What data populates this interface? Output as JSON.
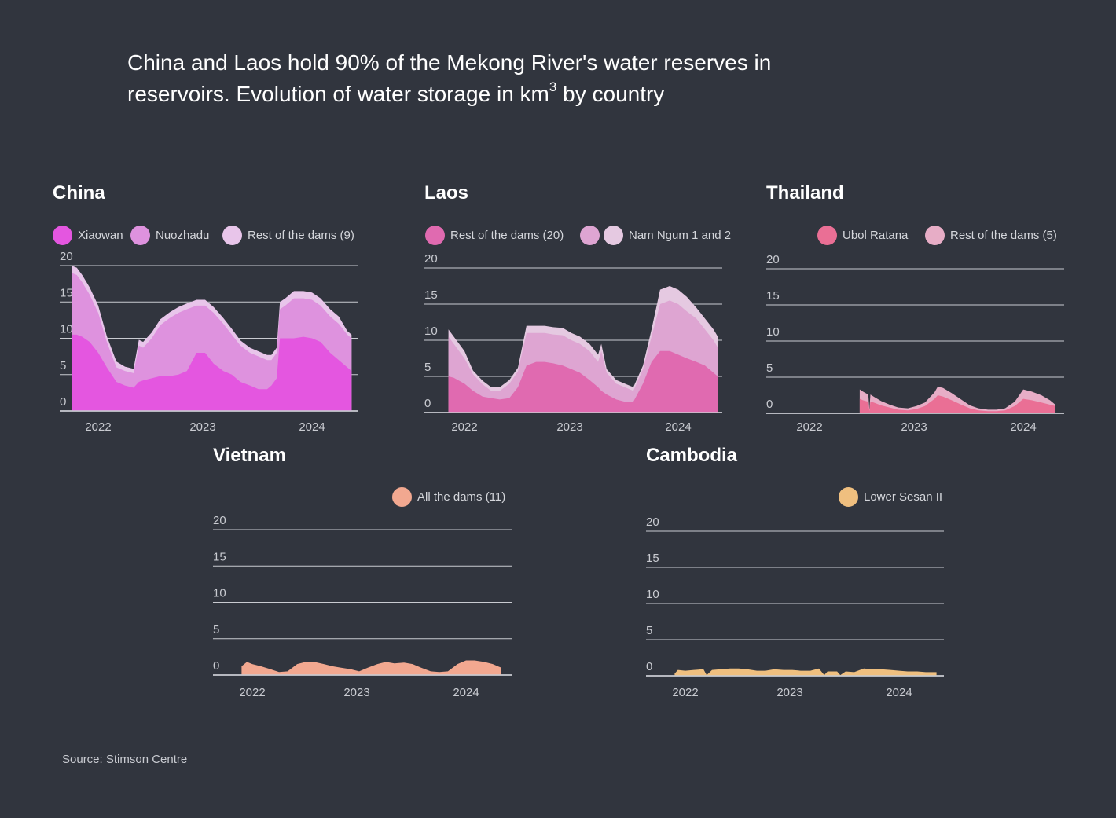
{
  "title_line1": "China and Laos hold 90% of the Mekong River's water reserves in",
  "title_line2_a": "reservoirs. Evolution of water storage in km",
  "title_line2_sup": "3",
  "title_line2_b": " by country",
  "source": "Source: Stimson Centre",
  "chart_data": [
    {
      "type": "area",
      "title": "China",
      "stacked": true,
      "x_ticks": [
        "2022",
        "2023",
        "2024"
      ],
      "y_ticks": [
        "0",
        "5",
        "10",
        "15",
        "20"
      ],
      "ylim": [
        0,
        20
      ],
      "x": [
        2021.75,
        2021.8,
        2021.85,
        2021.92,
        2022.0,
        2022.08,
        2022.17,
        2022.25,
        2022.33,
        2022.38,
        2022.42,
        2022.5,
        2022.58,
        2022.67,
        2022.75,
        2022.83,
        2022.92,
        2023.0,
        2023.08,
        2023.17,
        2023.25,
        2023.33,
        2023.42,
        2023.5,
        2023.58,
        2023.62,
        2023.67,
        2023.7,
        2023.75,
        2023.83,
        2023.92,
        2024.0,
        2024.08,
        2024.17,
        2024.25,
        2024.33,
        2024.37
      ],
      "series": [
        {
          "name": "Xiaowan",
          "color": "#e456e0",
          "values": [
            10.5,
            10.5,
            10.2,
            9.5,
            8.0,
            6.0,
            4.0,
            3.5,
            3.2,
            4.0,
            4.2,
            4.5,
            4.8,
            4.8,
            5.0,
            5.5,
            8.0,
            8.0,
            6.5,
            5.5,
            5.0,
            4.0,
            3.5,
            3.0,
            3.0,
            3.5,
            4.5,
            10.0,
            10.0,
            10.0,
            10.2,
            10.0,
            9.5,
            8.0,
            7.0,
            6.0,
            5.5
          ]
        },
        {
          "name": "Nuozhadu",
          "color": "#de92de",
          "values": [
            8.5,
            8.2,
            7.5,
            6.5,
            5.5,
            3.5,
            2.0,
            2.0,
            2.0,
            5.0,
            4.5,
            5.5,
            7.0,
            8.0,
            8.5,
            8.5,
            6.5,
            6.5,
            7.0,
            6.5,
            5.5,
            5.0,
            4.5,
            4.5,
            4.0,
            3.5,
            3.5,
            4.0,
            4.5,
            5.5,
            5.3,
            5.3,
            5.0,
            5.0,
            5.0,
            4.5,
            4.5
          ]
        },
        {
          "name": "Rest of the dams (9)",
          "color": "#e8c5ea",
          "values": [
            1.0,
            1.0,
            1.0,
            1.0,
            1.0,
            0.8,
            0.8,
            0.6,
            0.6,
            0.8,
            0.8,
            0.8,
            0.8,
            0.8,
            0.8,
            0.8,
            0.8,
            0.8,
            0.8,
            0.8,
            0.8,
            0.7,
            0.7,
            0.7,
            0.7,
            0.7,
            0.7,
            1.0,
            1.0,
            1.0,
            1.0,
            1.0,
            1.0,
            1.0,
            1.0,
            0.5,
            0.5
          ]
        }
      ]
    },
    {
      "type": "area",
      "title": "Laos",
      "stacked": true,
      "x_ticks": [
        "2022",
        "2023",
        "2024"
      ],
      "y_ticks": [
        "0",
        "5",
        "10",
        "15",
        "20"
      ],
      "ylim": [
        0,
        20
      ],
      "x": [
        2021.85,
        2021.9,
        2022.0,
        2022.08,
        2022.17,
        2022.25,
        2022.33,
        2022.42,
        2022.5,
        2022.58,
        2022.67,
        2022.75,
        2022.83,
        2022.92,
        2023.0,
        2023.08,
        2023.17,
        2023.25,
        2023.28,
        2023.33,
        2023.42,
        2023.5,
        2023.58,
        2023.67,
        2023.75,
        2023.83,
        2023.92,
        2024.0,
        2024.08,
        2024.17,
        2024.25,
        2024.33,
        2024.37
      ],
      "series": [
        {
          "name": "Rest of the dams (20)",
          "color": "#e06ab0",
          "values": [
            5.0,
            4.8,
            4.0,
            3.0,
            2.2,
            2.0,
            1.8,
            2.0,
            3.5,
            6.5,
            7.0,
            7.0,
            6.8,
            6.5,
            6.0,
            5.5,
            4.5,
            3.5,
            3.0,
            2.5,
            1.8,
            1.5,
            1.5,
            4.0,
            7.0,
            8.5,
            8.5,
            8.0,
            7.5,
            7.0,
            6.5,
            5.5,
            5.0
          ]
        },
        {
          "name": "Nam Ngum 1 and 2",
          "color": "#dea5d2",
          "values": [
            5.5,
            4.7,
            3.5,
            2.3,
            1.7,
            1.0,
            1.2,
            2.0,
            2.2,
            4.5,
            4.0,
            4.0,
            4.0,
            4.2,
            4.0,
            4.0,
            4.0,
            3.5,
            5.5,
            3.0,
            2.2,
            2.0,
            1.5,
            2.0,
            3.5,
            6.5,
            7.0,
            7.0,
            6.5,
            6.0,
            5.0,
            4.5,
            4.0
          ]
        },
        {
          "name": "",
          "color": "#e5c9e1",
          "values": [
            1.0,
            1.0,
            1.0,
            0.5,
            0.5,
            0.5,
            0.5,
            0.5,
            0.5,
            1.0,
            1.0,
            1.0,
            1.0,
            1.0,
            1.0,
            1.0,
            1.0,
            1.0,
            1.0,
            0.5,
            0.5,
            0.5,
            0.5,
            0.5,
            1.0,
            2.0,
            2.0,
            2.0,
            2.0,
            1.5,
            1.5,
            1.5,
            1.5
          ]
        }
      ]
    },
    {
      "type": "area",
      "title": "Thailand",
      "stacked": true,
      "x_ticks": [
        "2022",
        "2023",
        "2024"
      ],
      "y_ticks": [
        "0",
        "5",
        "10",
        "15",
        "20"
      ],
      "ylim": [
        0,
        20
      ],
      "x": [
        2022.47,
        2022.5,
        2022.55,
        2022.56,
        2022.57,
        2022.6,
        2022.67,
        2022.75,
        2022.83,
        2022.92,
        2023.0,
        2023.08,
        2023.17,
        2023.2,
        2023.25,
        2023.33,
        2023.42,
        2023.5,
        2023.58,
        2023.67,
        2023.75,
        2023.83,
        2023.92,
        2024.0,
        2024.08,
        2024.17,
        2024.25,
        2024.3
      ],
      "series": [
        {
          "name": "Ubol Ratana",
          "color": "#ea6f95",
          "values": [
            2.0,
            1.8,
            1.6,
            0.3,
            1.6,
            1.5,
            1.1,
            0.8,
            0.5,
            0.4,
            0.6,
            1.0,
            2.0,
            2.5,
            2.3,
            1.8,
            1.2,
            0.7,
            0.4,
            0.3,
            0.3,
            0.4,
            1.0,
            2.0,
            1.8,
            1.5,
            1.2,
            1.0
          ]
        },
        {
          "name": "Rest of the dams (5)",
          "color": "#e7adc6",
          "values": [
            1.3,
            1.2,
            1.0,
            0.2,
            1.0,
            0.8,
            0.6,
            0.4,
            0.3,
            0.3,
            0.4,
            0.5,
            0.9,
            1.2,
            1.2,
            1.0,
            0.7,
            0.4,
            0.3,
            0.2,
            0.2,
            0.3,
            0.6,
            1.3,
            1.2,
            1.0,
            0.6,
            0.2
          ]
        }
      ]
    },
    {
      "type": "area",
      "title": "Vietnam",
      "stacked": true,
      "x_ticks": [
        "2022",
        "2023",
        "2024"
      ],
      "y_ticks": [
        "0",
        "5",
        "10",
        "15",
        "20"
      ],
      "ylim": [
        0,
        20
      ],
      "x": [
        2021.9,
        2021.95,
        2022.0,
        2022.08,
        2022.17,
        2022.25,
        2022.33,
        2022.42,
        2022.5,
        2022.58,
        2022.67,
        2022.75,
        2022.83,
        2022.92,
        2023.0,
        2023.08,
        2023.17,
        2023.25,
        2023.33,
        2023.42,
        2023.5,
        2023.58,
        2023.67,
        2023.75,
        2023.83,
        2023.92,
        2024.0,
        2024.08,
        2024.17,
        2024.25,
        2024.33
      ],
      "series": [
        {
          "name": "All the dams (11)",
          "color": "#f2a890",
          "values": [
            1.2,
            1.8,
            1.5,
            1.2,
            0.8,
            0.4,
            0.5,
            1.5,
            1.8,
            1.8,
            1.5,
            1.2,
            1.0,
            0.8,
            0.5,
            1.0,
            1.5,
            1.8,
            1.6,
            1.7,
            1.5,
            1.0,
            0.5,
            0.4,
            0.5,
            1.5,
            2.0,
            2.0,
            1.8,
            1.5,
            1.0
          ]
        }
      ]
    },
    {
      "type": "area",
      "title": "Cambodia",
      "stacked": true,
      "x_ticks": [
        "2022",
        "2023",
        "2024"
      ],
      "y_ticks": [
        "0",
        "5",
        "10",
        "15",
        "20"
      ],
      "ylim": [
        0,
        20
      ],
      "x": [
        2021.9,
        2021.93,
        2022.0,
        2022.08,
        2022.17,
        2022.2,
        2022.25,
        2022.33,
        2022.42,
        2022.5,
        2022.58,
        2022.67,
        2022.75,
        2022.83,
        2022.92,
        2023.0,
        2023.08,
        2023.17,
        2023.25,
        2023.3,
        2023.33,
        2023.42,
        2023.45,
        2023.5,
        2023.58,
        2023.67,
        2023.75,
        2023.83,
        2023.92,
        2024.0,
        2024.08,
        2024.17,
        2024.25,
        2024.35
      ],
      "series": [
        {
          "name": "Lower Sesan II",
          "color": "#efbf7f",
          "values": [
            0.3,
            0.8,
            0.7,
            0.8,
            0.9,
            0.1,
            0.8,
            0.9,
            1.0,
            1.0,
            0.9,
            0.7,
            0.7,
            0.9,
            0.8,
            0.8,
            0.7,
            0.7,
            1.0,
            0.1,
            0.6,
            0.6,
            0.1,
            0.6,
            0.5,
            1.0,
            0.9,
            0.9,
            0.8,
            0.7,
            0.6,
            0.6,
            0.5,
            0.5
          ]
        }
      ]
    }
  ]
}
